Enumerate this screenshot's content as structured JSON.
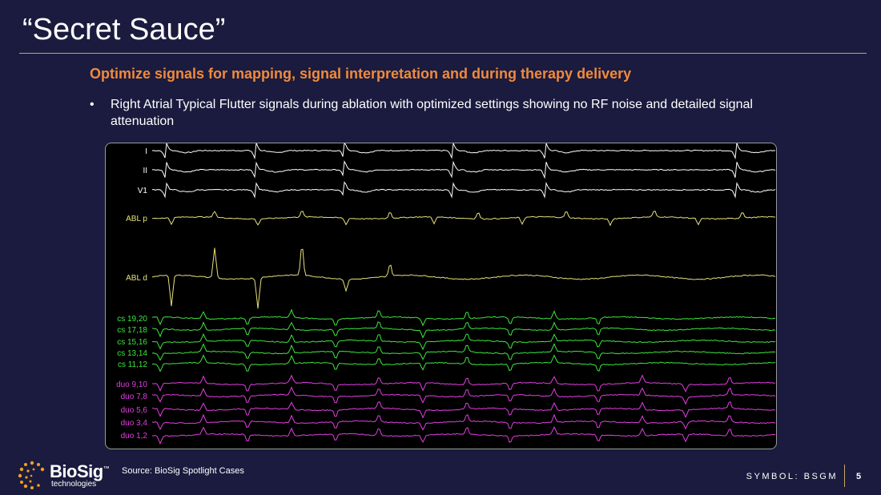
{
  "slide": {
    "title": "“Secret Sauce”",
    "subtitle": "Optimize signals for mapping, signal interpretation and during therapy delivery",
    "bullet_marker": "•",
    "bullet_text": "Right Atrial  Typical Flutter signals during ablation with optimized  settings showing no RF noise and detailed signal attenuation"
  },
  "recording": {
    "channels": [
      {
        "label": "I",
        "color": "#ffffff"
      },
      {
        "label": "II",
        "color": "#ffffff"
      },
      {
        "label": "V1",
        "color": "#ffffff"
      },
      {
        "label": "ABL p",
        "color": "#e6e07a"
      },
      {
        "label": "ABL d",
        "color": "#e6e07a"
      },
      {
        "label": "cs 19,20",
        "color": "#3de63d"
      },
      {
        "label": "cs 17,18",
        "color": "#3de63d"
      },
      {
        "label": "cs 15,16",
        "color": "#3de63d"
      },
      {
        "label": "cs 13,14",
        "color": "#3de63d"
      },
      {
        "label": "cs 11,12",
        "color": "#3de63d"
      },
      {
        "label": "duo 9,10",
        "color": "#e23ee2"
      },
      {
        "label": "duo 7,8",
        "color": "#e23ee2"
      },
      {
        "label": "duo 5,6",
        "color": "#e23ee2"
      },
      {
        "label": "duo 3,4",
        "color": "#e23ee2"
      },
      {
        "label": "duo 1,2",
        "color": "#e23ee2"
      }
    ]
  },
  "footer": {
    "logo_name": "BioSig",
    "logo_tm": "™",
    "logo_sub": "technologies",
    "source": "Source: BioSig Spotlight Cases",
    "symbol": "SYMBOL: BSGM",
    "page_number": "5"
  },
  "colors": {
    "background": "#1a1b3e",
    "accent_orange": "#f08a3c",
    "rule_gold": "#c9a36a"
  }
}
